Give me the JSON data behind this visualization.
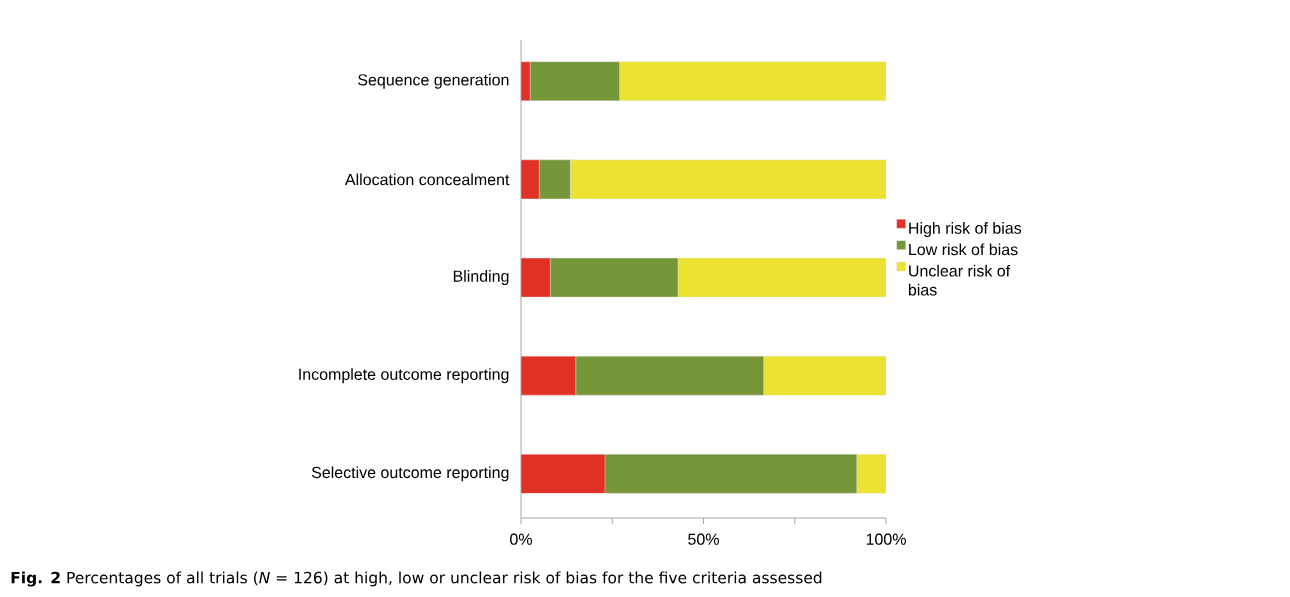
{
  "chart_data": {
    "type": "bar",
    "orientation": "horizontal",
    "stacked": true,
    "categories": [
      "Sequence generation",
      "Allocation concealment",
      "Blinding",
      "Incomplete outcome reporting",
      "Selective outcome reporting"
    ],
    "series": [
      {
        "name": "High risk of bias",
        "color": "#e03127",
        "values": [
          2.5,
          5,
          8,
          15,
          23
        ]
      },
      {
        "name": "Low risk of bias",
        "color": "#76963a",
        "values": [
          24.5,
          8.5,
          35,
          51.5,
          69
        ]
      },
      {
        "name": "Unclear risk of bias",
        "color": "#ebe232",
        "values": [
          73,
          86.5,
          57,
          33.5,
          8
        ]
      }
    ],
    "xlim": [
      0,
      100
    ],
    "xticks": [
      {
        "value": 0,
        "label": "0%"
      },
      {
        "value": 25,
        "label": null
      },
      {
        "value": 50,
        "label": "50%"
      },
      {
        "value": 75,
        "label": null
      },
      {
        "value": 100,
        "label": "100%"
      }
    ],
    "legend": "right",
    "annotations": [
      "**Fig. 2** Percentages of all trials (*N* = 126) at high, low or unclear risk of bias for the five criteria assessed"
    ]
  }
}
